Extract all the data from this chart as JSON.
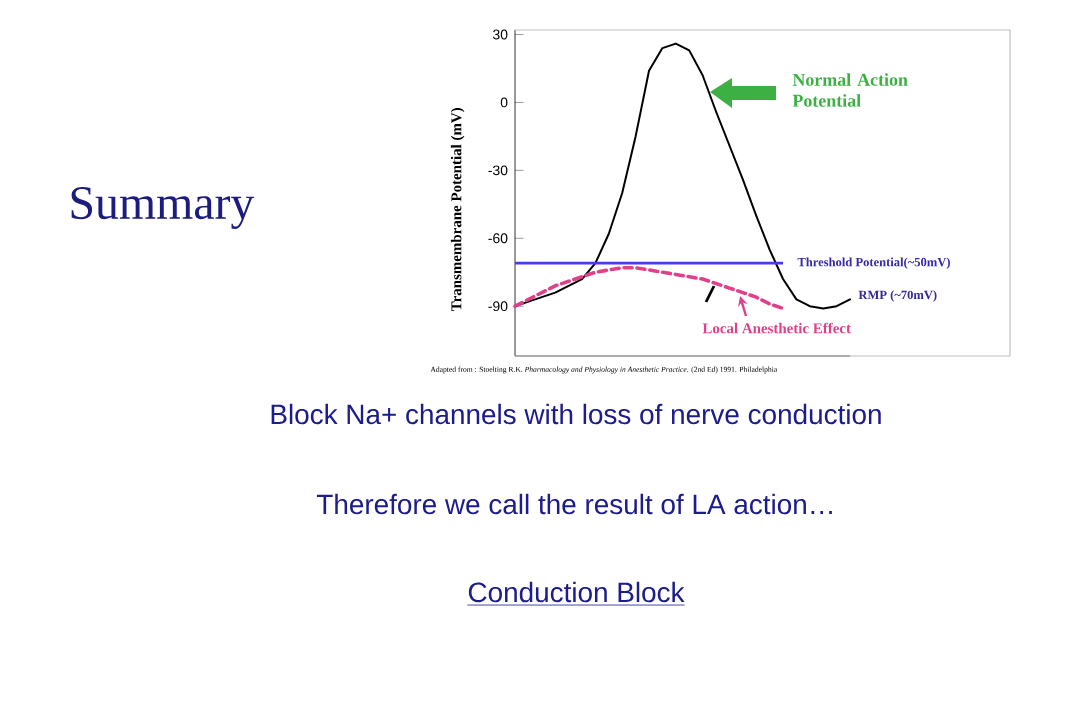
{
  "chart_data": {
    "type": "line",
    "title": "Summary",
    "ylabel": "Transmembrane Potential (mV)",
    "categories": [
      null,
      null,
      null,
      null,
      null,
      null,
      null,
      null,
      null,
      null,
      null,
      null,
      null,
      null,
      null,
      null,
      null,
      null,
      null,
      null,
      null,
      null,
      null,
      null,
      null,
      null
    ],
    "series": [
      {
        "color": "#000000",
        "line_style": "solid",
        "values": [
          -90,
          -88,
          -86,
          -84,
          -81,
          -78,
          -71,
          -58,
          -40,
          -15,
          14,
          24,
          26,
          23,
          12,
          -4,
          -19,
          -34,
          -50,
          -65,
          -78,
          -87,
          -90,
          -91,
          -90,
          -87
        ]
      },
      {
        "color": "#e0408a",
        "line_style": "dashed",
        "values": [
          -90,
          -87,
          -84,
          -81,
          -79,
          -77,
          -75,
          -74,
          -73,
          -73,
          -74,
          -75,
          -76,
          -77,
          -78,
          -80,
          -82,
          -84,
          -86,
          -89,
          -91,
          null,
          null,
          null,
          null,
          null
        ]
      }
    ],
    "ylim": [
      -112,
      32
    ],
    "yticks": [
      30,
      0,
      -30,
      -60,
      -90
    ],
    "tick_labels": "y",
    "marker": "none",
    "ref_lines": [
      {
        "axis": "y",
        "value": -71,
        "label": "Threshold Potential(~50mV)",
        "color": "#4a3aee"
      }
    ],
    "annotations": [
      "Normal Action Potential",
      "RMP (~70mV)",
      "Local Anesthetic Effect",
      "Adapted from : Stoelting R.K. *Pharmacology and Physiology in Anesthetic Practice.* (2nd Ed) 1991. Philadelphia",
      "Block Na+ channels with loss of nerve conduction",
      "Therefore we call the result of LA action…",
      "Conduction Block"
    ]
  }
}
